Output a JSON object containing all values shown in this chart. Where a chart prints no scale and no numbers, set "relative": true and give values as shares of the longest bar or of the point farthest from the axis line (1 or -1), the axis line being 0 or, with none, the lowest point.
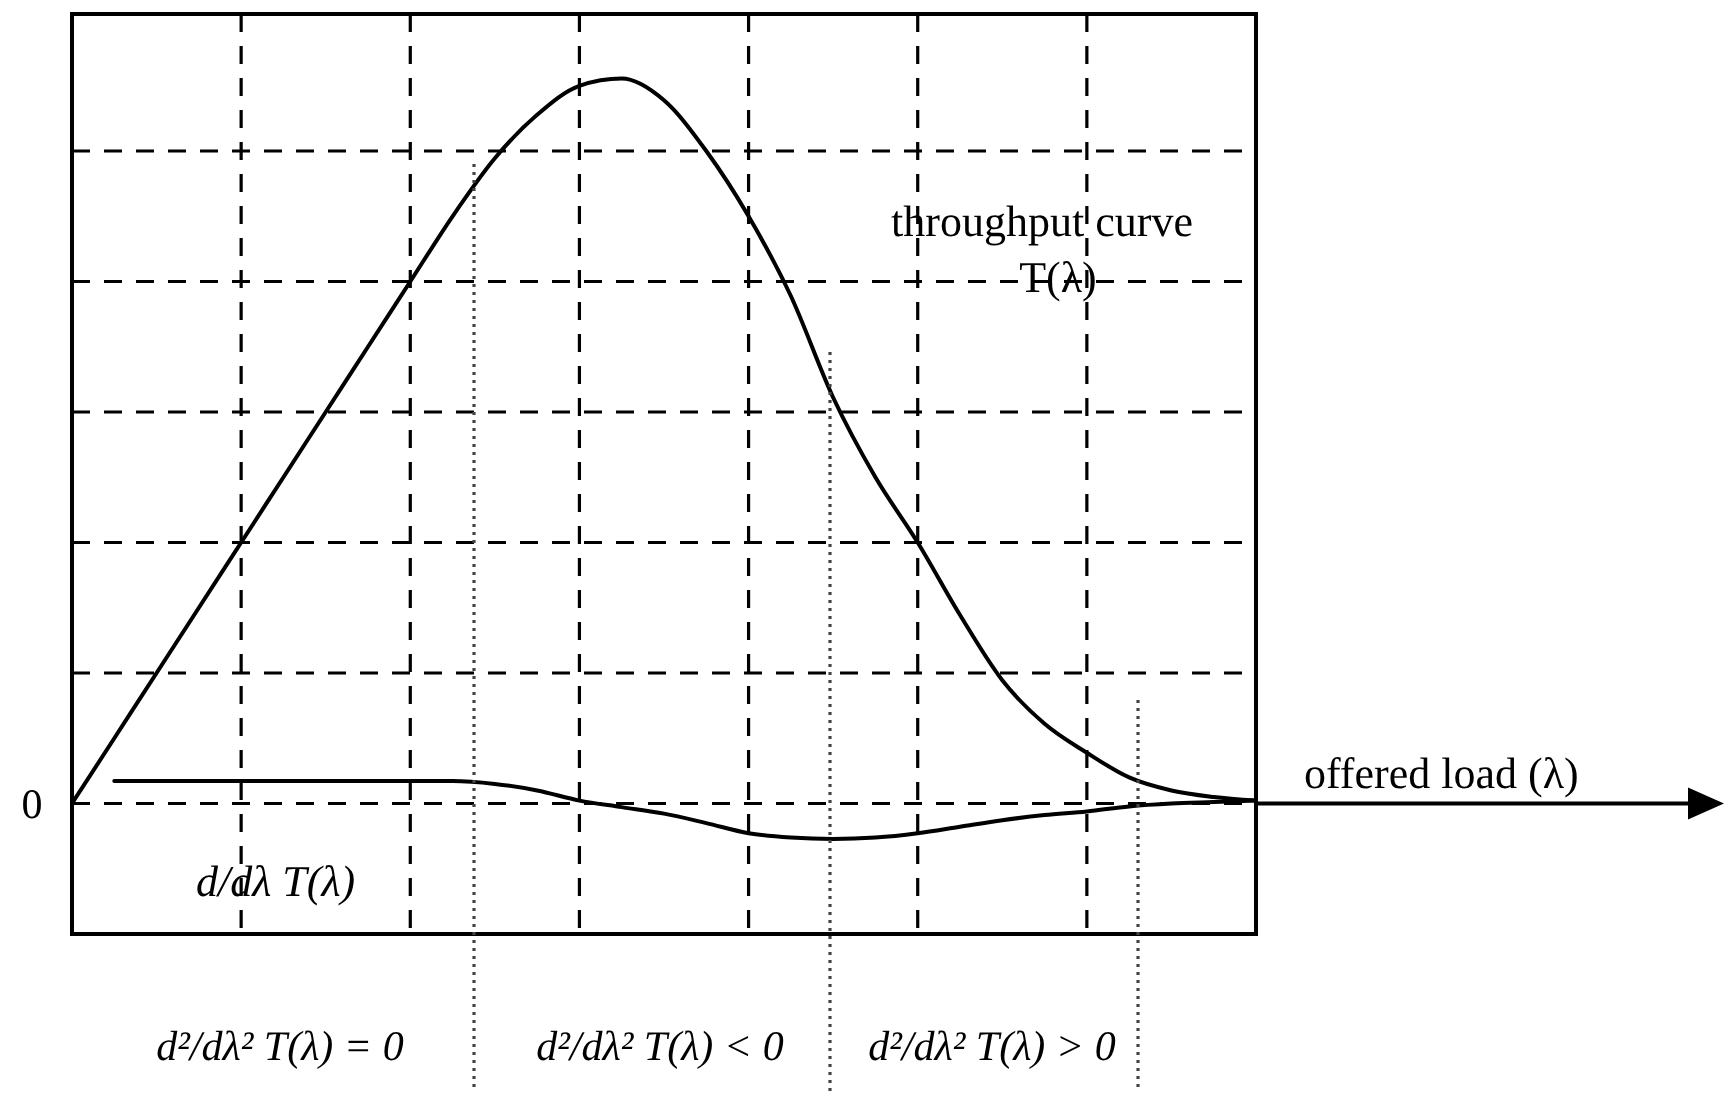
{
  "chart_data": {
    "type": "line",
    "xlabel": "offered load (λ)",
    "relative": true,
    "grid": true,
    "marker": "none",
    "line_style": "solid",
    "categories": [
      null,
      null,
      null,
      null,
      null,
      null,
      null,
      null,
      null,
      null,
      null,
      null,
      null,
      null,
      null,
      null,
      null,
      null,
      null,
      null,
      null,
      null,
      null,
      null,
      null,
      null,
      null,
      null,
      null
    ],
    "series": [
      {
        "name": "throughput curve T(λ)",
        "color": "#000000",
        "values": [
          0,
          0.09,
          0.18,
          0.27,
          0.36,
          0.45,
          0.54,
          0.63,
          0.72,
          0.81,
          0.89,
          0.95,
          0.99,
          1,
          0.97,
          0.9,
          0.81,
          0.7,
          0.56,
          0.45,
          0.36,
          0.26,
          0.17,
          0.11,
          0.07,
          0.036,
          0.018,
          0.009,
          0.004
        ]
      },
      {
        "name": "d/dλ T(λ)",
        "color": "#000000",
        "values": [
          null,
          0.031,
          0.031,
          0.031,
          0.031,
          0.031,
          0.031,
          0.031,
          0.031,
          0.031,
          0.027,
          0.018,
          0.004,
          -0.005,
          -0.014,
          -0.027,
          -0.041,
          -0.047,
          -0.049,
          -0.047,
          -0.041,
          -0.032,
          -0.023,
          -0.016,
          -0.011,
          -0.004,
          0,
          0.002,
          0.004
        ]
      }
    ],
    "annotations": [
      "0",
      "d²/dλ² T(λ) = 0",
      "d²/dλ² T(λ) < 0",
      "d²/dλ² T(λ) > 0"
    ]
  }
}
